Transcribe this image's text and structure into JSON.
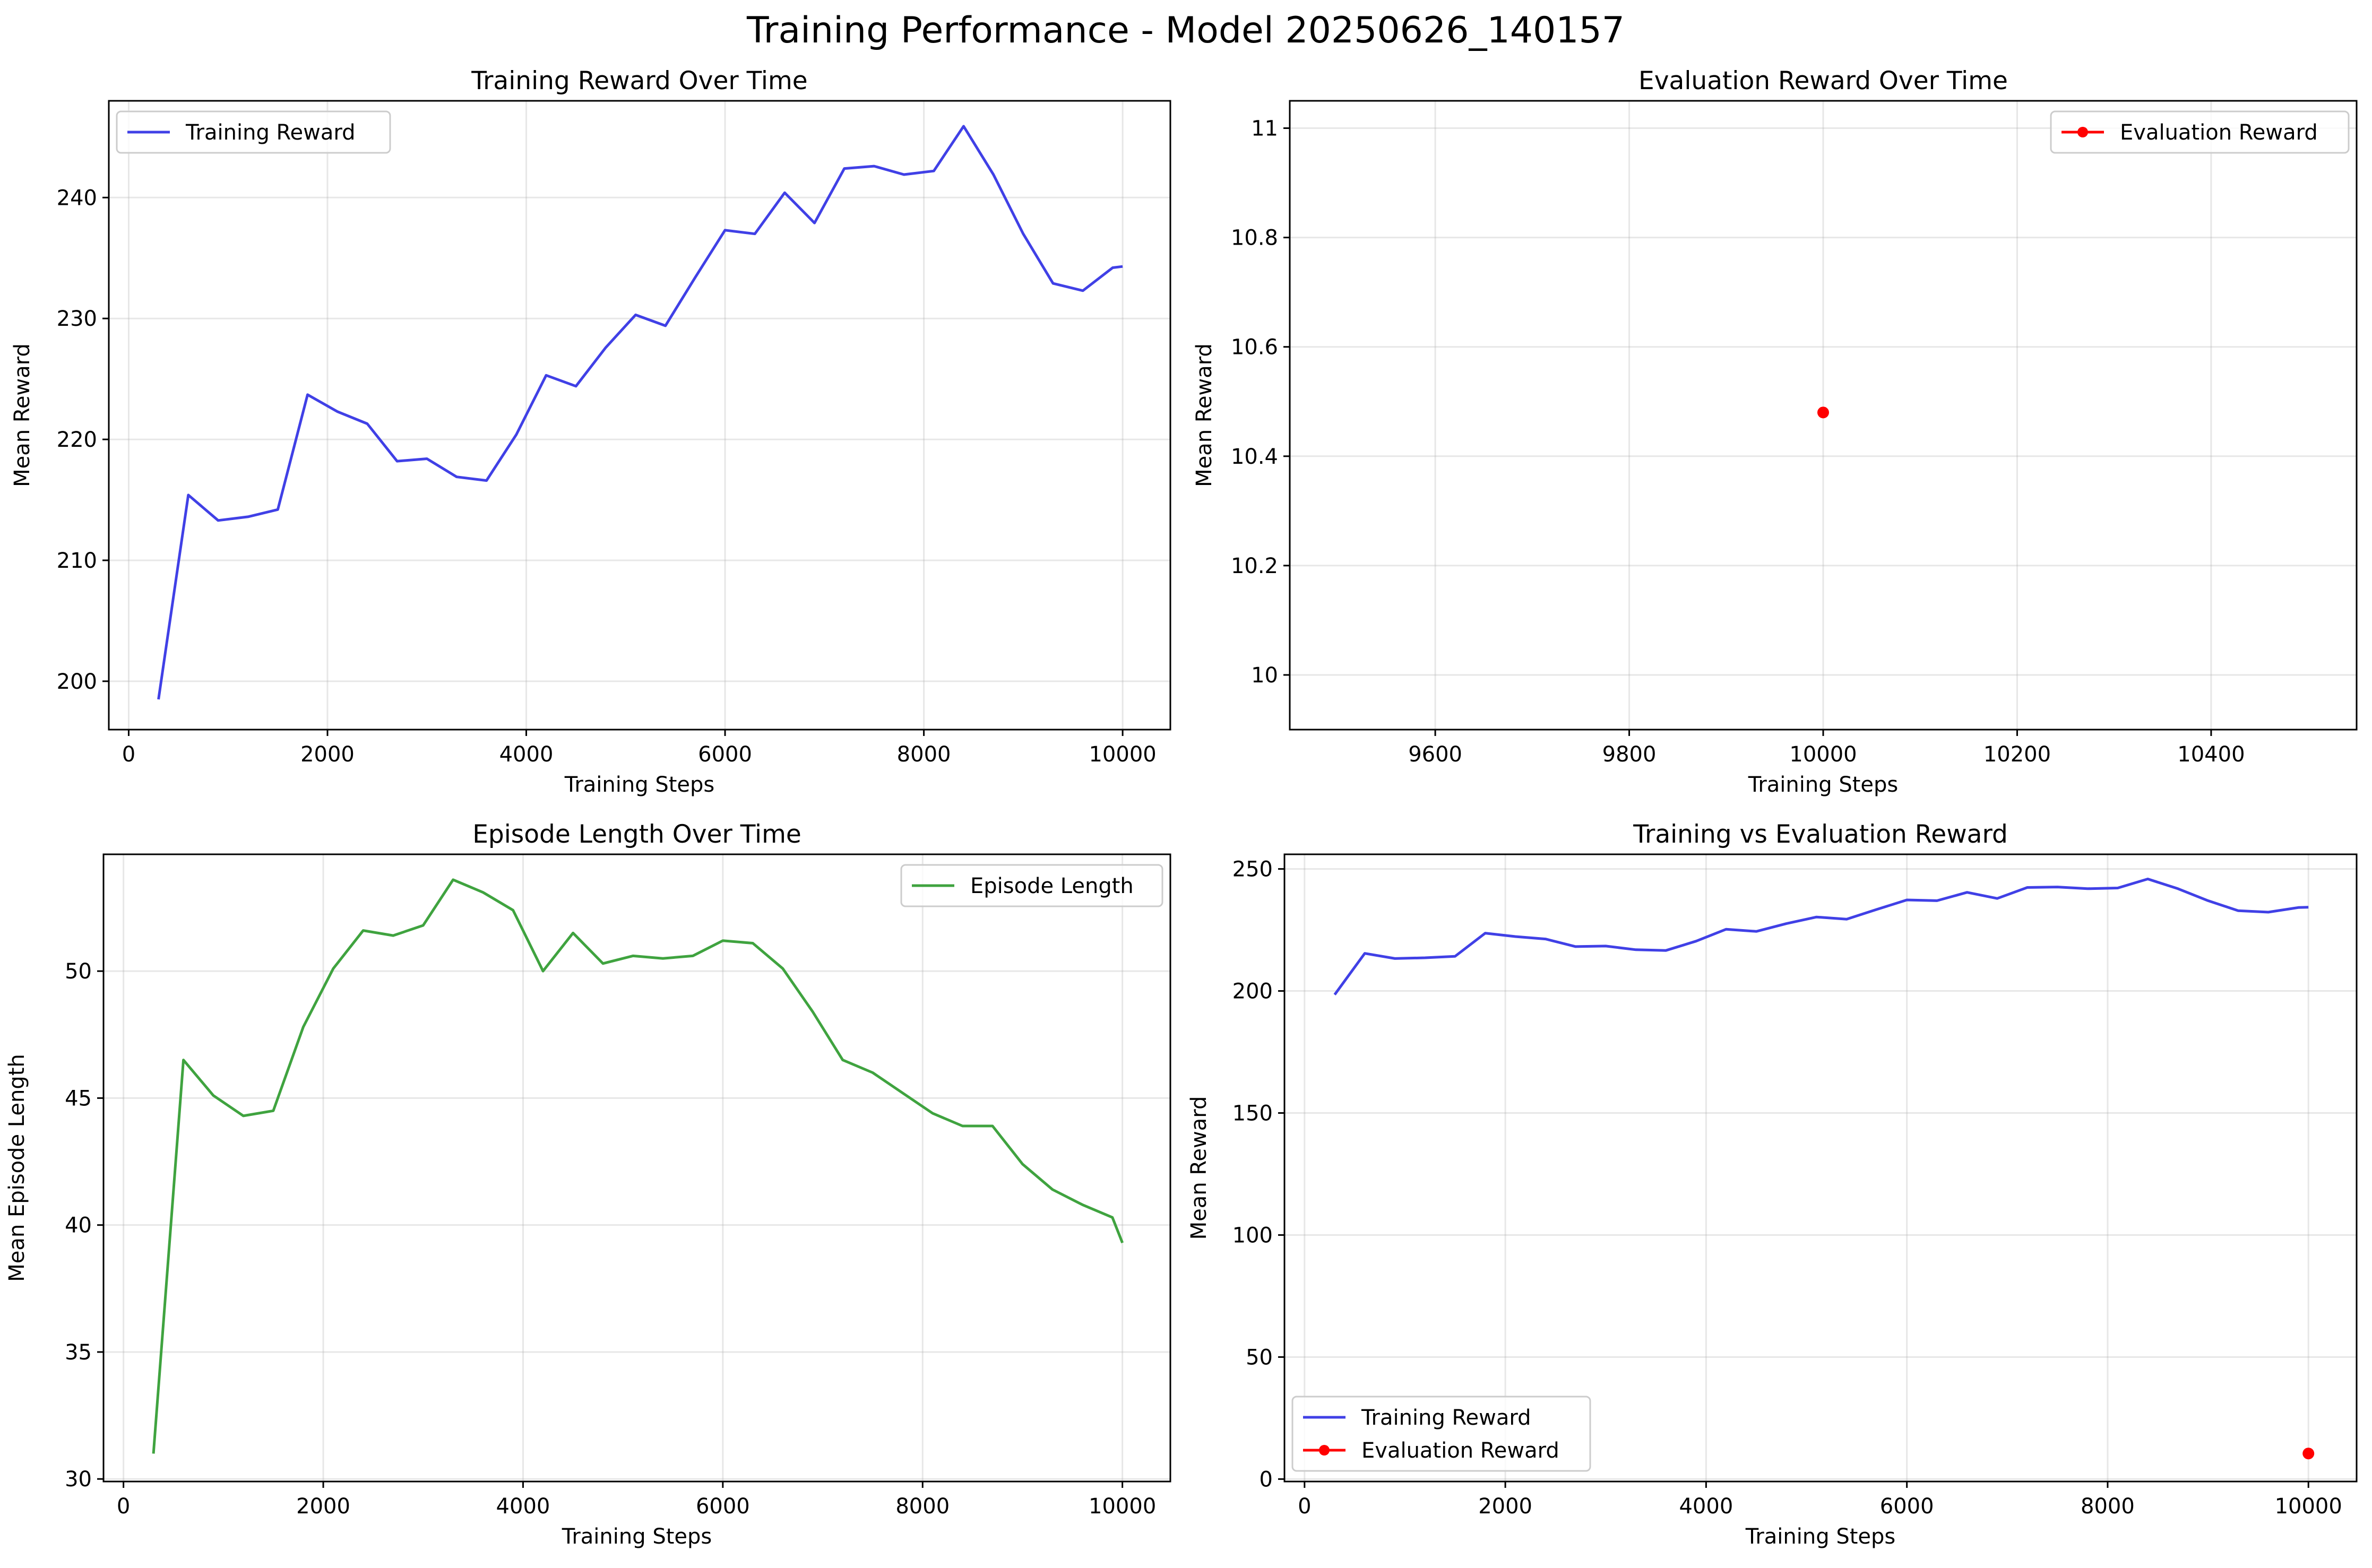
{
  "figure": {
    "title": "Training Performance - Model 20250626_140157",
    "colors": {
      "training": "#4040e6",
      "evaluation": "#ff0000",
      "episode": "#3fa33f"
    }
  },
  "chart_data": [
    {
      "type": "line",
      "title": "Training Reward Over Time",
      "xlabel": "Training Steps",
      "ylabel": "Mean Reward",
      "xlim": [
        -200,
        10480
      ],
      "ylim": [
        196,
        248
      ],
      "xticks": [
        0,
        2000,
        4000,
        6000,
        8000,
        10000
      ],
      "yticks": [
        200,
        210,
        220,
        230,
        240
      ],
      "grid": true,
      "legend": "upper-left",
      "series": [
        {
          "name": "Training Reward",
          "color": "#4040e6",
          "x": [
            300,
            600,
            900,
            1200,
            1500,
            1800,
            2100,
            2400,
            2700,
            3000,
            3300,
            3600,
            3900,
            4200,
            4500,
            4800,
            5100,
            5400,
            5700,
            6000,
            6300,
            6600,
            6900,
            7200,
            7500,
            7800,
            8100,
            8400,
            8700,
            9000,
            9300,
            9600,
            9900,
            10000
          ],
          "y": [
            198.5,
            215.4,
            213.3,
            213.6,
            214.2,
            223.7,
            222.3,
            221.3,
            218.2,
            218.4,
            216.9,
            216.6,
            220.4,
            225.3,
            224.4,
            227.6,
            230.3,
            229.4,
            233.4,
            237.3,
            237.0,
            240.4,
            237.9,
            242.4,
            242.6,
            241.9,
            242.2,
            245.9,
            241.9,
            237.0,
            232.9,
            232.3,
            234.2,
            234.3
          ]
        }
      ]
    },
    {
      "type": "scatter",
      "title": "Evaluation Reward Over Time",
      "xlabel": "Training Steps",
      "ylabel": "Mean Reward",
      "xlim": [
        9450,
        10550
      ],
      "ylim": [
        9.9,
        11.05
      ],
      "xticks": [
        9600,
        9800,
        10000,
        10200,
        10400
      ],
      "yticks": [
        10.0,
        10.2,
        10.4,
        10.6,
        10.8,
        11.0
      ],
      "grid": true,
      "legend": "upper-right",
      "series": [
        {
          "name": "Evaluation Reward",
          "color": "#ff0000",
          "x": [
            10000
          ],
          "y": [
            10.48
          ]
        }
      ]
    },
    {
      "type": "line",
      "title": "Episode Length Over Time",
      "xlabel": "Training Steps",
      "ylabel": "Mean Episode Length",
      "xlim": [
        -200,
        10480
      ],
      "ylim": [
        29.9,
        54.6
      ],
      "xticks": [
        0,
        2000,
        4000,
        6000,
        8000,
        10000
      ],
      "yticks": [
        30,
        35,
        40,
        45,
        50
      ],
      "grid": true,
      "legend": "upper-right",
      "series": [
        {
          "name": "Episode Length",
          "color": "#3fa33f",
          "x": [
            300,
            600,
            900,
            1200,
            1500,
            1800,
            2100,
            2400,
            2700,
            3000,
            3300,
            3600,
            3900,
            4200,
            4500,
            4800,
            5100,
            5400,
            5700,
            6000,
            6300,
            6600,
            6900,
            7200,
            7500,
            7800,
            8100,
            8400,
            8700,
            9000,
            9300,
            9600,
            9900,
            10000
          ],
          "y": [
            31.0,
            46.5,
            45.1,
            44.3,
            44.5,
            47.8,
            50.1,
            51.6,
            51.4,
            51.8,
            53.6,
            53.1,
            52.4,
            50.0,
            51.5,
            50.3,
            50.6,
            50.5,
            50.6,
            51.2,
            51.1,
            50.1,
            48.4,
            46.5,
            46.0,
            45.2,
            44.4,
            43.9,
            43.9,
            42.4,
            41.4,
            40.8,
            40.3,
            39.3
          ]
        }
      ]
    },
    {
      "type": "line",
      "title": "Training vs Evaluation Reward",
      "xlabel": "Training Steps",
      "ylabel": "Mean Reward",
      "xlim": [
        -200,
        10480
      ],
      "ylim": [
        -1,
        256
      ],
      "xticks": [
        0,
        2000,
        4000,
        6000,
        8000,
        10000
      ],
      "yticks": [
        0,
        50,
        100,
        150,
        200,
        250
      ],
      "grid": true,
      "legend": "lower-left",
      "series": [
        {
          "name": "Training Reward",
          "color": "#4040e6",
          "x": [
            300,
            600,
            900,
            1200,
            1500,
            1800,
            2100,
            2400,
            2700,
            3000,
            3300,
            3600,
            3900,
            4200,
            4500,
            4800,
            5100,
            5400,
            5700,
            6000,
            6300,
            6600,
            6900,
            7200,
            7500,
            7800,
            8100,
            8400,
            8700,
            9000,
            9300,
            9600,
            9900,
            10000
          ],
          "y": [
            198.5,
            215.4,
            213.3,
            213.6,
            214.2,
            223.7,
            222.3,
            221.3,
            218.2,
            218.4,
            216.9,
            216.6,
            220.4,
            225.3,
            224.4,
            227.6,
            230.3,
            229.4,
            233.4,
            237.3,
            237.0,
            240.4,
            237.9,
            242.4,
            242.6,
            241.9,
            242.2,
            245.9,
            241.9,
            237.0,
            232.9,
            232.3,
            234.2,
            234.3
          ]
        },
        {
          "name": "Evaluation Reward",
          "color": "#ff0000",
          "marker": true,
          "x": [
            10000
          ],
          "y": [
            10.48
          ]
        }
      ]
    }
  ]
}
